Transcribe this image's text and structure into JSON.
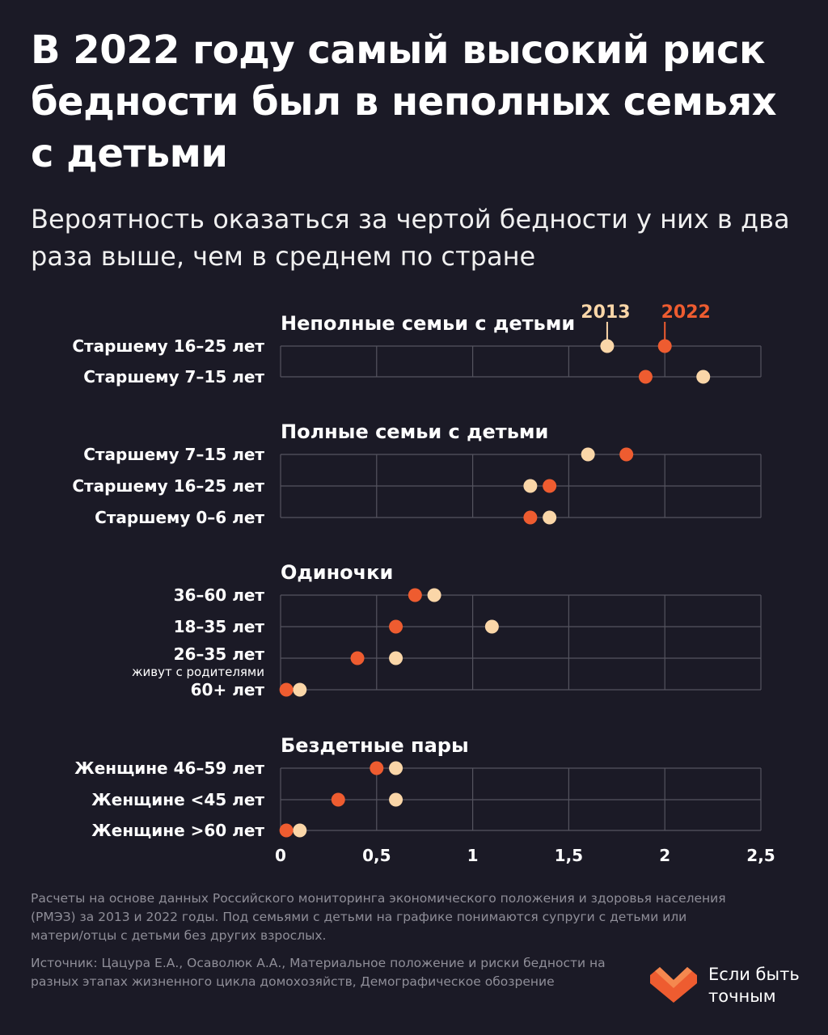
{
  "header": {
    "title": "В 2022 году самый высокий риск бедности был в неполных семьях с детьми",
    "subtitle": "Вероятность оказаться за чертой бедности у них в два раза выше, чем в среднем по стране"
  },
  "legend": {
    "y2013": "2013",
    "y2022": "2022"
  },
  "colors": {
    "c2013": "#fad6a8",
    "c2022": "#ee5c30",
    "background": "#1b1a26",
    "grid": "#55545f"
  },
  "chart_data": {
    "type": "scatter",
    "series_names": [
      "2013",
      "2022"
    ],
    "xlim": [
      0,
      2.5
    ],
    "x_ticks": [
      "0",
      "0,5",
      "1",
      "1,5",
      "2",
      "2,5"
    ],
    "groups": [
      {
        "title": "Неполные семьи с детьми",
        "rows": [
          {
            "label": "Старшему 16–25 лет",
            "v2013": 1.7,
            "v2022": 2.0
          },
          {
            "label": "Старшему 7–15 лет",
            "v2013": 2.2,
            "v2022": 1.9
          }
        ]
      },
      {
        "title": "Полные семьи с детьми",
        "rows": [
          {
            "label": "Старшему 7–15 лет",
            "v2013": 1.6,
            "v2022": 1.8
          },
          {
            "label": "Старшему 16–25 лет",
            "v2013": 1.3,
            "v2022": 1.4
          },
          {
            "label": "Старшему 0–6 лет",
            "v2013": 1.4,
            "v2022": 1.3
          }
        ]
      },
      {
        "title": "Одиночки",
        "rows": [
          {
            "label": "36–60 лет",
            "v2013": 0.8,
            "v2022": 0.7
          },
          {
            "label": "18–35 лет",
            "v2013": 1.1,
            "v2022": 0.6
          },
          {
            "label": "26–35 лет",
            "sublabel": "живут с родителями",
            "v2013": 0.6,
            "v2022": 0.4
          },
          {
            "label": "60+ лет",
            "v2013": 0.1,
            "v2022": 0.03
          }
        ]
      },
      {
        "title": "Бездетные пары",
        "rows": [
          {
            "label": "Женщине 46–59 лет",
            "v2013": 0.6,
            "v2022": 0.5
          },
          {
            "label": "Женщине <45 лет",
            "v2013": 0.6,
            "v2022": 0.3
          },
          {
            "label": "Женщине >60 лет",
            "v2013": 0.1,
            "v2022": 0.03
          }
        ]
      }
    ]
  },
  "footer": {
    "note": "Расчеты на основе данных Российского мониторинга экономического положения и здоровья населения (РМЭЗ) за 2013 и 2022 годы. Под семьями с детьми на графике понимаются супруги с детьми или матери/отцы с детьми без других взрослых.",
    "source": "Источник: Цацура Е.А., Осаволюк А.А., Материальное положение и риски бедности на разных этапах жизненного цикла домохозяйств, Демографическое обозрение"
  },
  "brand": {
    "name": "Если быть точным",
    "logo_icon": "heart-logo-icon"
  }
}
